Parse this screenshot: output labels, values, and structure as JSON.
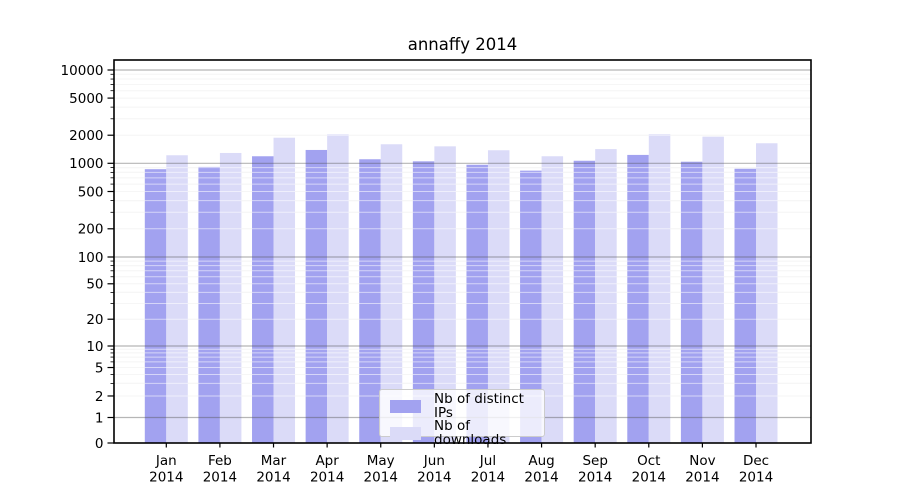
{
  "title": "annaffy 2014",
  "chart_data": {
    "type": "bar",
    "title": "annaffy 2014",
    "xlabel": "",
    "ylabel": "",
    "yscale": "symlog",
    "grid": "on",
    "legend_position": "lower center",
    "ylim": [
      0,
      12000
    ],
    "y_ticks": [
      10000,
      5000,
      2000,
      1000,
      500,
      200,
      100,
      50,
      20,
      10,
      5,
      2,
      1,
      0
    ],
    "categories": [
      "Jan 2014",
      "Feb 2014",
      "Mar 2014",
      "Apr 2014",
      "May 2014",
      "Jun 2014",
      "Jul 2014",
      "Aug 2014",
      "Sep 2014",
      "Oct 2014",
      "Nov 2014",
      "Dec 2014"
    ],
    "series": [
      {
        "name": "Nb of distinct IPs",
        "color": "#a2a2f0",
        "values": [
          865,
          915,
          1190,
          1390,
          1105,
          1050,
          965,
          835,
          1065,
          1230,
          1040,
          875
        ]
      },
      {
        "name": "Nb of downloads",
        "color": "#dbdbf8",
        "values": [
          1220,
          1290,
          1880,
          2045,
          1600,
          1520,
          1380,
          1190,
          1420,
          2050,
          1930,
          1640
        ]
      }
    ]
  },
  "colors": {
    "background": "#ffffff",
    "spine": "#000000",
    "major_grid": "#b4b4b4",
    "minor_grid": "#ececec",
    "legend_border": "#cccccc",
    "text": "#000000"
  }
}
